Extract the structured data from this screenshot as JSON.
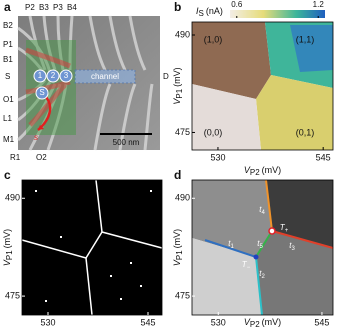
{
  "panels": {
    "a": {
      "label": "a",
      "gates": {
        "top": [
          "P2",
          "B3",
          "P3",
          "B4"
        ],
        "left": [
          "B2",
          "P1",
          "B1",
          "S",
          "O1",
          "L1",
          "M1"
        ],
        "bottom": [
          "R1",
          "O2"
        ]
      },
      "dots": [
        "1",
        "2",
        "3"
      ],
      "sensor": "S",
      "channel": "channel",
      "drain": "D",
      "scale_bar": "500 nm",
      "path_label": "s"
    },
    "b": {
      "label": "b",
      "colorbar": {
        "symbol": "I",
        "sub": "S",
        "unit": "(nA)",
        "clim": [
          0.55,
          1.25
        ],
        "ticks": [
          0.6,
          1.2
        ]
      },
      "xlabel": {
        "symbol": "V",
        "sub": "P2",
        "unit": "(mV)"
      },
      "ylabel": {
        "symbol": "V",
        "sub": "P1",
        "unit": "(mV)"
      },
      "xlim": [
        526.3,
        546.4
      ],
      "ylim": [
        472.3,
        492
      ],
      "xticks": [
        530,
        545
      ],
      "yticks": [
        475,
        490
      ],
      "regions": [
        "(1,0)",
        "(1,1)",
        "(0,0)",
        "(0,1)"
      ]
    },
    "c": {
      "label": "c",
      "ylabel": {
        "symbol": "V",
        "sub": "P1",
        "unit": "(mV)"
      },
      "xlim": [
        526.1,
        547.1
      ],
      "ylim": [
        472.1,
        492.8
      ],
      "xticks": [
        530,
        545
      ],
      "yticks": [
        475,
        490
      ]
    },
    "d": {
      "label": "d",
      "xlabel": {
        "symbol": "V",
        "sub": "P2",
        "unit": "(mV)"
      },
      "ylabel": {
        "symbol": "V",
        "sub": "P1",
        "unit": "(mV)"
      },
      "xlim": [
        526.2,
        546.6
      ],
      "ylim": [
        472.1,
        492.8
      ],
      "xticks": [
        530,
        545
      ],
      "yticks": [
        475,
        490
      ],
      "annotations": [
        {
          "text": "t",
          "sub": "4"
        },
        {
          "text": "T",
          "sub": "+"
        },
        {
          "text": "t",
          "sub": "3"
        },
        {
          "text": "t",
          "sub": "5"
        },
        {
          "text": "t",
          "sub": "1"
        },
        {
          "text": "T",
          "sub": "−"
        },
        {
          "text": "t",
          "sub": "2"
        }
      ]
    }
  }
}
